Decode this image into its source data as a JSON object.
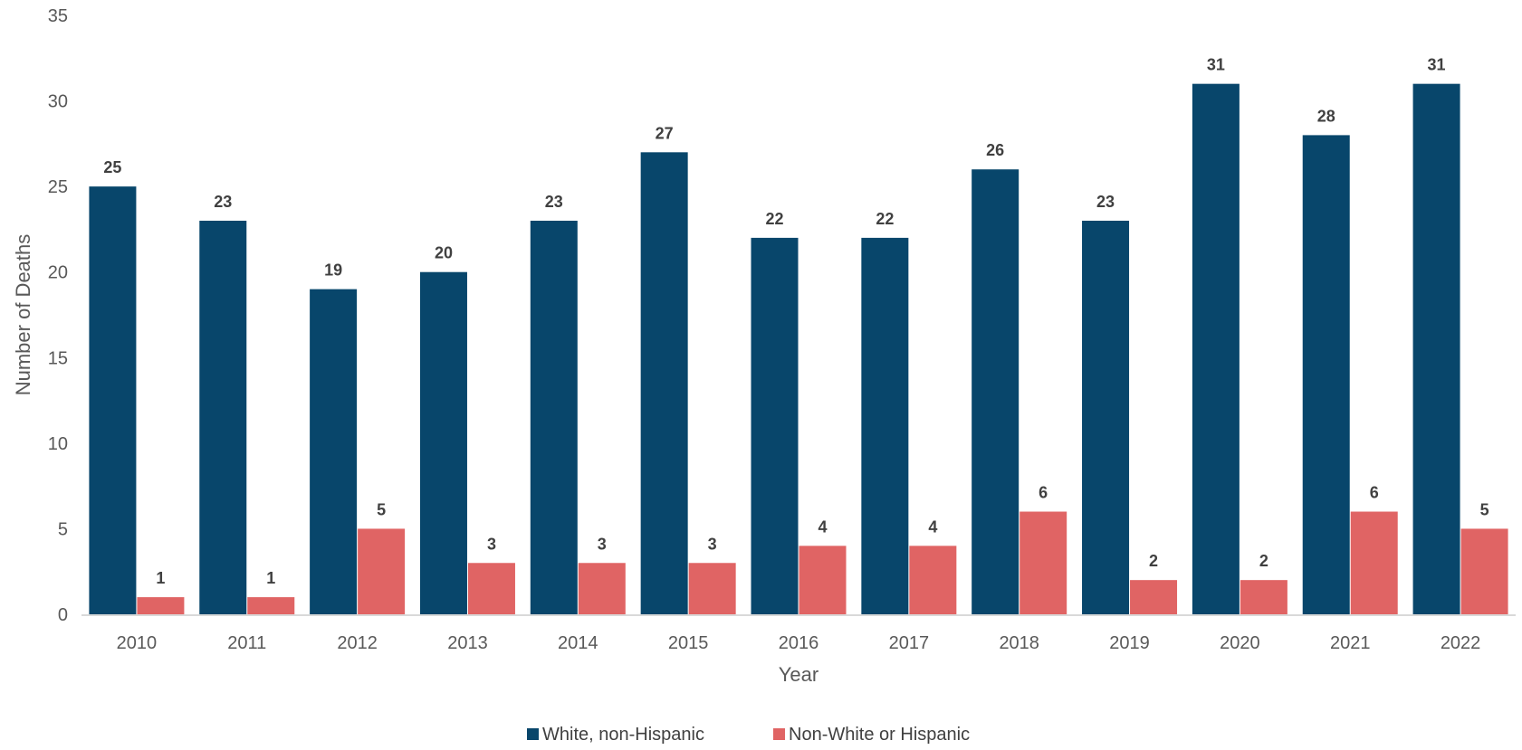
{
  "chart_data": {
    "type": "bar",
    "title": "",
    "xlabel": "Year",
    "ylabel": "Number of Deaths",
    "ylim": [
      0,
      35
    ],
    "yticks": [
      0,
      5,
      10,
      15,
      20,
      25,
      30,
      35
    ],
    "grid": false,
    "legend_position": "bottom",
    "categories": [
      "2010",
      "2011",
      "2012",
      "2013",
      "2014",
      "2015",
      "2016",
      "2017",
      "2018",
      "2019",
      "2020",
      "2021",
      "2022"
    ],
    "series": [
      {
        "name": "White, non-Hispanic",
        "color": "#08466B",
        "values": [
          25,
          23,
          19,
          20,
          23,
          27,
          22,
          22,
          26,
          23,
          31,
          28,
          31
        ]
      },
      {
        "name": "Non-White or Hispanic",
        "color": "#E06464",
        "values": [
          1,
          1,
          5,
          3,
          3,
          3,
          4,
          4,
          6,
          2,
          2,
          6,
          5
        ]
      }
    ]
  }
}
